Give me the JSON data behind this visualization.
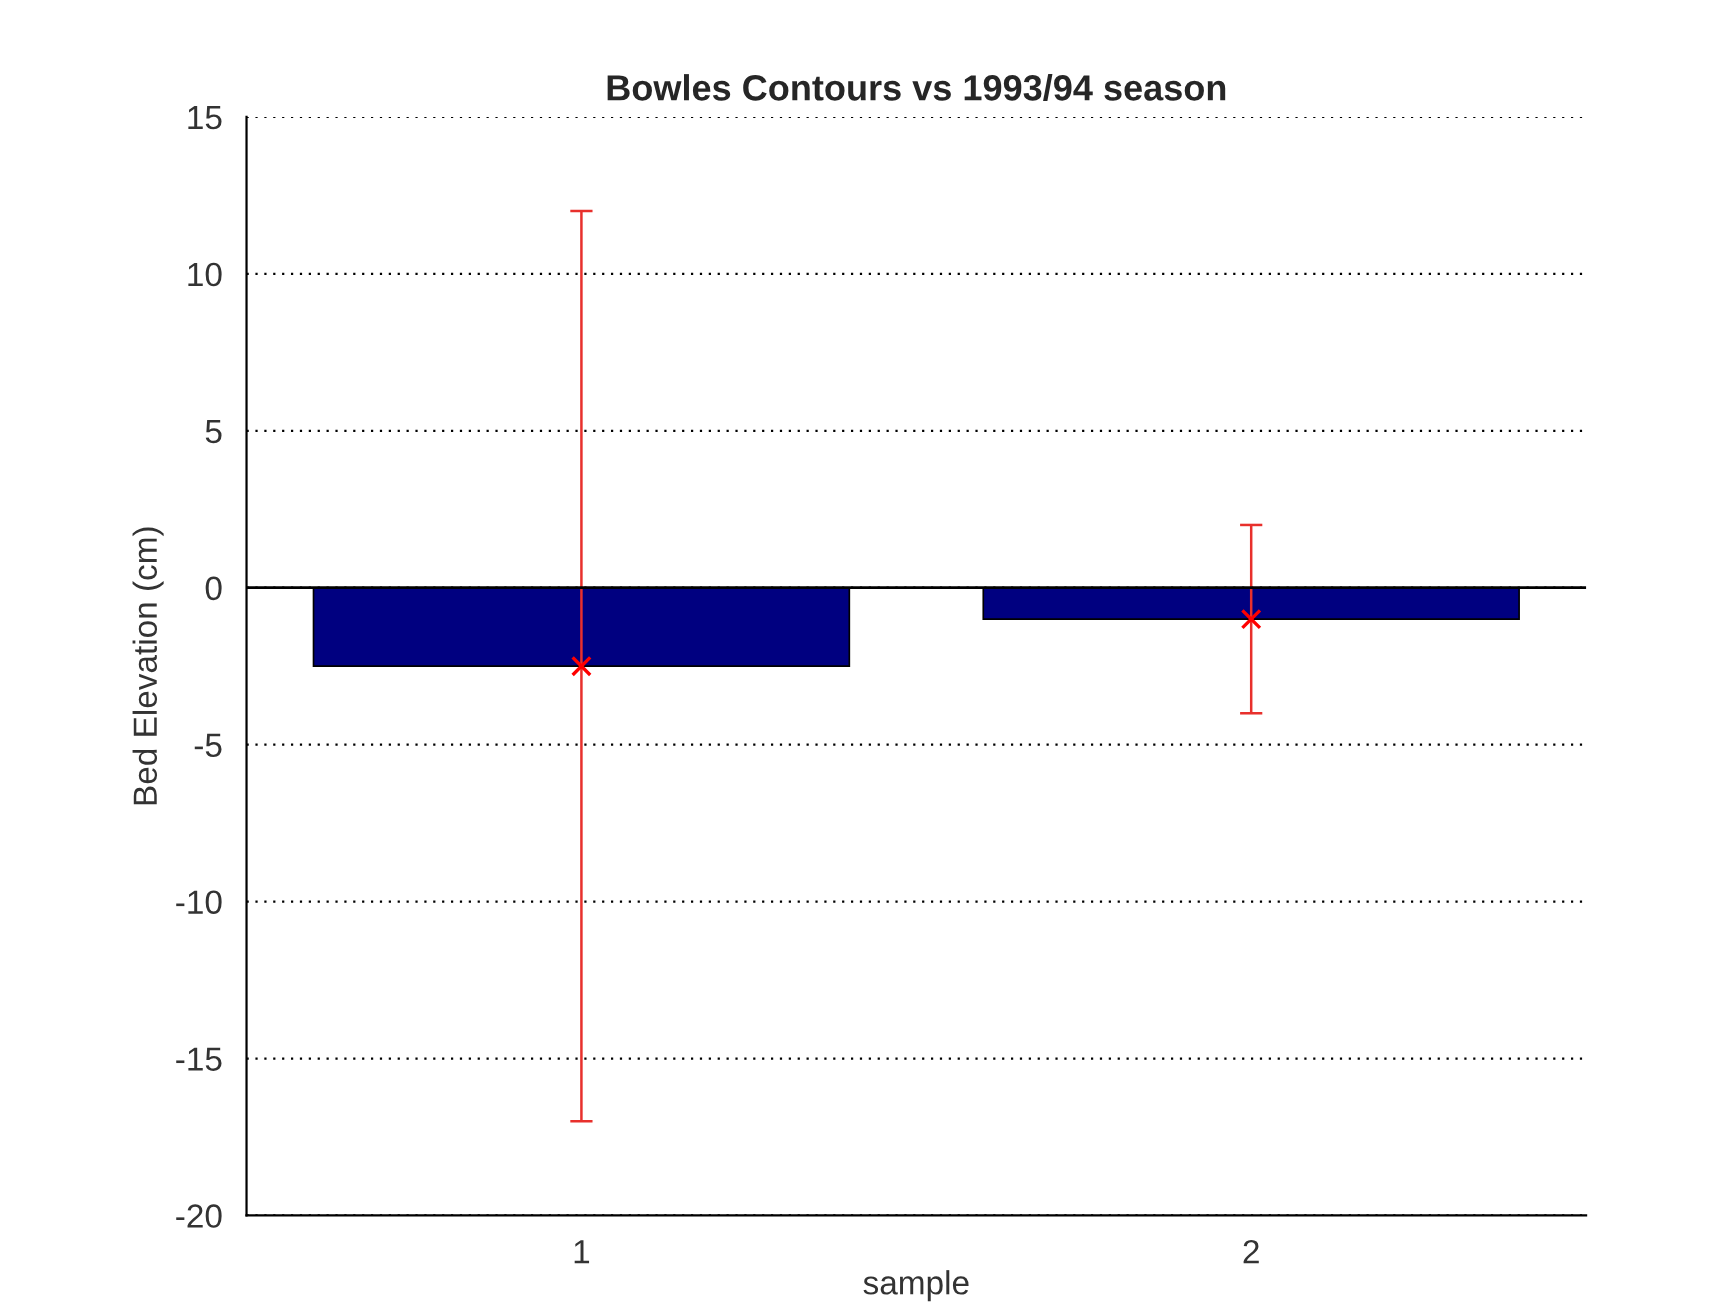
{
  "chart_data": {
    "type": "bar",
    "title": "Bowles Contours vs 1993/94 season",
    "xlabel": "sample",
    "ylabel": "Bed Elevation (cm)",
    "categories": [
      "1",
      "2"
    ],
    "series": [
      {
        "color": "#000080",
        "values": [
          -2.5,
          -1
        ],
        "errors": [
          [
            -17,
            12
          ],
          [
            -4,
            2
          ]
        ]
      },
      {
        "type": "scatter",
        "color": "#ff0000",
        "x": [
          "1",
          "2"
        ],
        "values": [
          -2.5,
          -1
        ],
        "marker": "cross"
      }
    ],
    "ylim": [
      -20,
      15
    ],
    "yticks": [
      -20,
      -15,
      -10,
      -5,
      0,
      5,
      10,
      15
    ],
    "grid": "y",
    "legend": false,
    "ref_lines": [
      {
        "axis": "y",
        "value": 0,
        "color": "#000000",
        "line_style": "solid"
      }
    ]
  }
}
